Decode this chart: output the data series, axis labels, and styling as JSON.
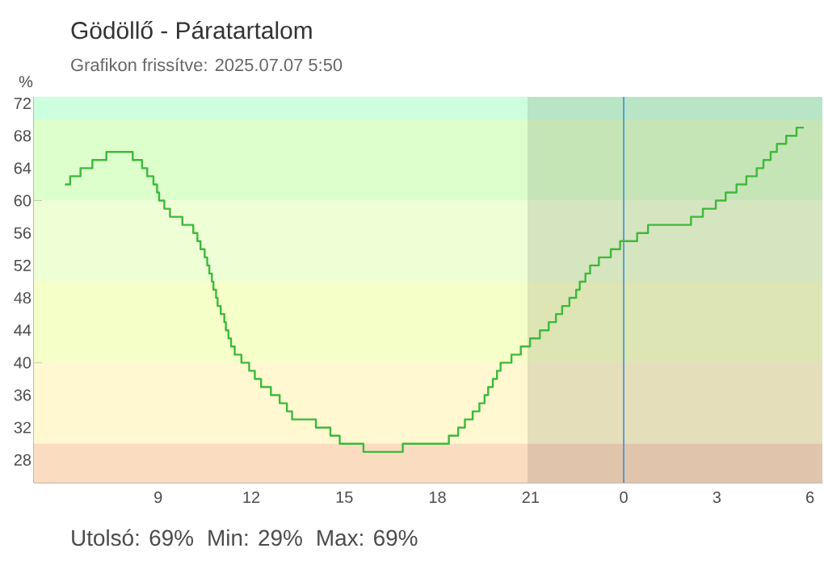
{
  "chart_data": {
    "type": "step",
    "title": "Gödöllő - Páratartalom",
    "subtitle": "Grafikon frissítve: 2025.07.07 5:50",
    "ylabel": "%",
    "annotations": [
      "Utolsó: 69%",
      "Min: 29%",
      "Max: 69%"
    ],
    "x": [
      "2025-07-06T06:00",
      "2025-07-06T06:10",
      "2025-07-06T06:30",
      "2025-07-06T06:53",
      "2025-07-06T07:20",
      "2025-07-06T08:11",
      "2025-07-06T08:29",
      "2025-07-06T08:39",
      "2025-07-06T08:51",
      "2025-07-06T08:58",
      "2025-07-06T09:02",
      "2025-07-06T09:12",
      "2025-07-06T09:23",
      "2025-07-06T09:47",
      "2025-07-06T10:08",
      "2025-07-06T10:16",
      "2025-07-06T10:22",
      "2025-07-06T10:30",
      "2025-07-06T10:35",
      "2025-07-06T10:39",
      "2025-07-06T10:44",
      "2025-07-06T10:47",
      "2025-07-06T10:52",
      "2025-07-06T10:55",
      "2025-07-06T11:01",
      "2025-07-06T11:08",
      "2025-07-06T11:11",
      "2025-07-06T11:16",
      "2025-07-06T11:21",
      "2025-07-06T11:28",
      "2025-07-06T11:41",
      "2025-07-06T11:56",
      "2025-07-06T12:07",
      "2025-07-06T12:19",
      "2025-07-06T12:38",
      "2025-07-06T12:55",
      "2025-07-06T13:09",
      "2025-07-06T13:19",
      "2025-07-06T14:05",
      "2025-07-06T14:33",
      "2025-07-06T14:51",
      "2025-07-06T15:37",
      "2025-07-06T16:53",
      "2025-07-06T18:22",
      "2025-07-06T18:40",
      "2025-07-06T18:53",
      "2025-07-06T19:08",
      "2025-07-06T19:21",
      "2025-07-06T19:31",
      "2025-07-06T19:38",
      "2025-07-06T19:47",
      "2025-07-06T19:55",
      "2025-07-06T20:02",
      "2025-07-06T20:23",
      "2025-07-06T20:41",
      "2025-07-06T20:59",
      "2025-07-06T21:18",
      "2025-07-06T21:35",
      "2025-07-06T21:49",
      "2025-07-06T22:01",
      "2025-07-06T22:15",
      "2025-07-06T22:28",
      "2025-07-06T22:35",
      "2025-07-06T22:46",
      "2025-07-06T22:55",
      "2025-07-06T23:12",
      "2025-07-06T23:35",
      "2025-07-06T23:53",
      "2025-07-07T00:26",
      "2025-07-07T00:47",
      "2025-07-07T02:10",
      "2025-07-07T02:33",
      "2025-07-07T02:58",
      "2025-07-07T03:17",
      "2025-07-07T03:38",
      "2025-07-07T03:57",
      "2025-07-07T04:17",
      "2025-07-07T04:30",
      "2025-07-07T04:44",
      "2025-07-07T04:56",
      "2025-07-07T05:14",
      "2025-07-07T05:34",
      "2025-07-07T05:48"
    ],
    "series": [
      {
        "color": "#3cb93c",
        "values": [
          62,
          63,
          64,
          65,
          66,
          65,
          64,
          63,
          62,
          61,
          60,
          59,
          58,
          57,
          56,
          55,
          54,
          53,
          52,
          51,
          50,
          49,
          48,
          47,
          46,
          45,
          44,
          43,
          42,
          41,
          40,
          39,
          38,
          37,
          36,
          35,
          34,
          33,
          32,
          31,
          30,
          29,
          30,
          31,
          32,
          33,
          34,
          35,
          36,
          37,
          38,
          39,
          40,
          41,
          42,
          43,
          44,
          45,
          46,
          47,
          48,
          49,
          50,
          51,
          52,
          53,
          54,
          55,
          56,
          57,
          58,
          59,
          60,
          61,
          62,
          63,
          64,
          65,
          66,
          67,
          68,
          69,
          69
        ]
      }
    ],
    "xlim": [
      "2025-07-06T05:00",
      "2025-07-07T06:24"
    ],
    "ylim": [
      25.2,
      72.8
    ],
    "xticks": [
      {
        "value": "2025-07-06T06:00",
        "label": null
      },
      {
        "value": "2025-07-06T09:00",
        "label": "9"
      },
      {
        "value": "2025-07-06T12:00",
        "label": "12"
      },
      {
        "value": "2025-07-06T15:00",
        "label": "15"
      },
      {
        "value": "2025-07-06T18:00",
        "label": "18"
      },
      {
        "value": "2025-07-06T21:00",
        "label": "21"
      },
      {
        "value": "2025-07-07T00:00",
        "label": "0"
      },
      {
        "value": "2025-07-07T03:00",
        "label": "3"
      },
      {
        "value": "2025-07-07T06:00",
        "label": "6"
      }
    ],
    "yticks": [
      28,
      32,
      36,
      40,
      44,
      48,
      52,
      56,
      60,
      64,
      68,
      72
    ],
    "bands": [
      {
        "axis": "x",
        "from": "2025-07-06T20:54",
        "to": "2025-07-07T06:24",
        "color": "#000000"
      },
      {
        "axis": "y",
        "from": 70,
        "to": 72.8,
        "color": "#ccffdd"
      },
      {
        "axis": "y",
        "from": 60,
        "to": 70,
        "color": "#ddffcc"
      },
      {
        "axis": "y",
        "from": 50,
        "to": 60,
        "color": "#eeffd5"
      },
      {
        "axis": "y",
        "from": 40,
        "to": 50,
        "color": "#f5ffc8"
      },
      {
        "axis": "y",
        "from": 30,
        "to": 40,
        "color": "#fff8d0"
      },
      {
        "axis": "y",
        "from": 25.2,
        "to": 30,
        "color": "#fadcc0"
      }
    ],
    "ref_lines": [
      {
        "axis": "x",
        "value": "2025-07-07T00:00",
        "color": "#3a8fd0"
      }
    ],
    "grid": false,
    "marker": "none",
    "line_style": "solid"
  }
}
